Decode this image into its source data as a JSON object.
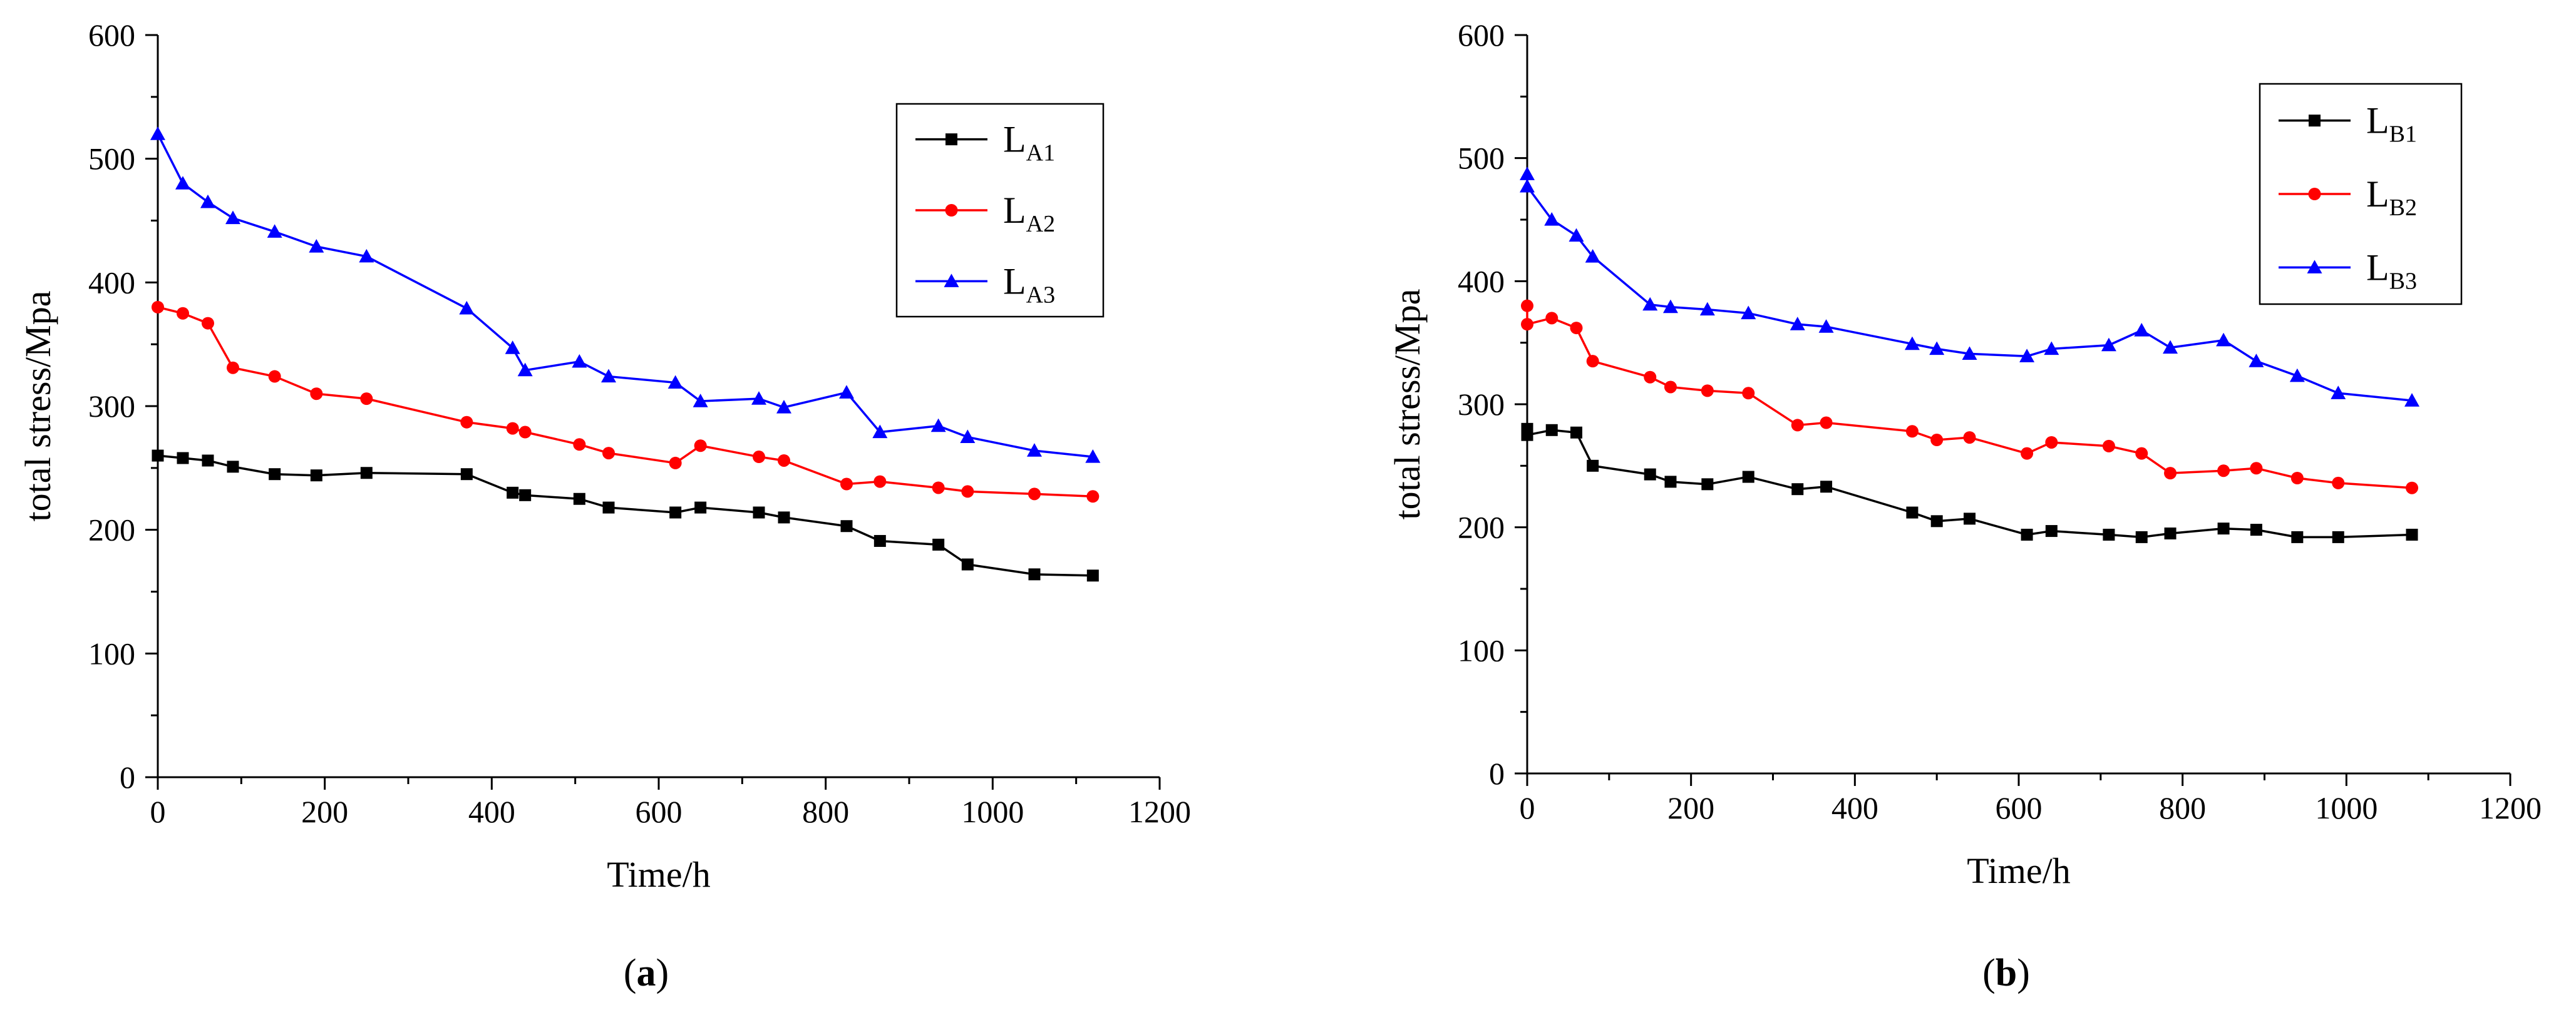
{
  "chart_data": [
    {
      "type": "line",
      "panel_label": "a",
      "xlabel": "Time/h",
      "ylabel": "total stress/Mpa",
      "xlim": [
        0,
        1200
      ],
      "ylim": [
        0,
        600
      ],
      "xticks": [
        0,
        200,
        400,
        600,
        800,
        1000,
        1200
      ],
      "yticks": [
        0,
        100,
        200,
        300,
        400,
        500,
        600
      ],
      "grid": false,
      "legend_position": "top-right",
      "series": [
        {
          "name": "LA1",
          "label_main": "L",
          "label_sub": "A1",
          "color": "#000000",
          "marker": "square",
          "x": [
            0,
            30,
            60,
            90,
            140,
            190,
            250,
            370,
            425,
            440,
            505,
            540,
            620,
            650,
            720,
            750,
            825,
            865,
            935,
            970,
            1050,
            1120
          ],
          "y": [
            260,
            258,
            256,
            251,
            245,
            244,
            246,
            245,
            230,
            228,
            225,
            218,
            214,
            218,
            214,
            210,
            203,
            191,
            188,
            172,
            164,
            163
          ]
        },
        {
          "name": "LA2",
          "label_main": "L",
          "label_sub": "A2",
          "color": "#ff0000",
          "marker": "circle",
          "x": [
            0,
            30,
            60,
            90,
            140,
            190,
            250,
            370,
            425,
            440,
            505,
            540,
            620,
            650,
            720,
            750,
            825,
            865,
            935,
            970,
            1050,
            1120
          ],
          "y": [
            380,
            375,
            367,
            331,
            324,
            310,
            306,
            287,
            282,
            279,
            269,
            262,
            254,
            268,
            259,
            256,
            237,
            239,
            234,
            231,
            229,
            227
          ]
        },
        {
          "name": "LA3",
          "label_main": "L",
          "label_sub": "A3",
          "color": "#0000ff",
          "marker": "triangle",
          "x": [
            0,
            30,
            60,
            90,
            140,
            190,
            250,
            370,
            425,
            440,
            505,
            540,
            620,
            650,
            720,
            750,
            825,
            865,
            935,
            970,
            1050,
            1120
          ],
          "y": [
            520,
            480,
            465,
            452,
            441,
            429,
            421,
            379,
            347,
            329,
            336,
            324,
            319,
            304,
            306,
            299,
            311,
            279,
            284,
            275,
            264,
            259
          ]
        }
      ]
    },
    {
      "type": "line",
      "panel_label": "b",
      "xlabel": "Time/h",
      "ylabel": "total stress/Mpa",
      "xlim": [
        0,
        1200
      ],
      "ylim": [
        0,
        600
      ],
      "xticks": [
        0,
        200,
        400,
        600,
        800,
        1000,
        1200
      ],
      "yticks": [
        0,
        100,
        200,
        300,
        400,
        500,
        600
      ],
      "grid": false,
      "legend_position": "top-right",
      "series": [
        {
          "name": "LB1",
          "label_main": "L",
          "label_sub": "B1",
          "color": "#000000",
          "marker": "square",
          "x": [
            0,
            0,
            30,
            60,
            80,
            150,
            175,
            220,
            270,
            330,
            365,
            470,
            500,
            540,
            610,
            640,
            710,
            750,
            785,
            850,
            890,
            940,
            990,
            1080
          ],
          "y": [
            280,
            275,
            279,
            277,
            250,
            243,
            237,
            235,
            241,
            231,
            233,
            212,
            205,
            207,
            194,
            197,
            194,
            192,
            195,
            199,
            198,
            192,
            192,
            194
          ]
        },
        {
          "name": "LB2",
          "label_main": "L",
          "label_sub": "B2",
          "color": "#ff0000",
          "marker": "circle",
          "x": [
            0,
            0,
            30,
            60,
            80,
            150,
            175,
            220,
            270,
            330,
            365,
            470,
            500,
            540,
            610,
            640,
            710,
            750,
            785,
            850,
            890,
            940,
            990,
            1080
          ],
          "y": [
            380,
            365,
            370,
            362,
            335,
            322,
            314,
            311,
            309,
            283,
            285,
            278,
            271,
            273,
            260,
            269,
            266,
            260,
            244,
            246,
            248,
            240,
            236,
            232
          ]
        },
        {
          "name": "LB3",
          "label_main": "L",
          "label_sub": "B3",
          "color": "#0000ff",
          "marker": "triangle",
          "x": [
            0,
            0,
            30,
            60,
            80,
            150,
            175,
            220,
            270,
            330,
            365,
            470,
            500,
            540,
            610,
            640,
            710,
            750,
            785,
            850,
            890,
            940,
            990,
            1080
          ],
          "y": [
            487,
            477,
            450,
            437,
            420,
            381,
            379,
            377,
            374,
            365,
            363,
            349,
            345,
            341,
            339,
            345,
            348,
            360,
            346,
            352,
            335,
            323,
            309,
            303
          ]
        }
      ]
    }
  ]
}
